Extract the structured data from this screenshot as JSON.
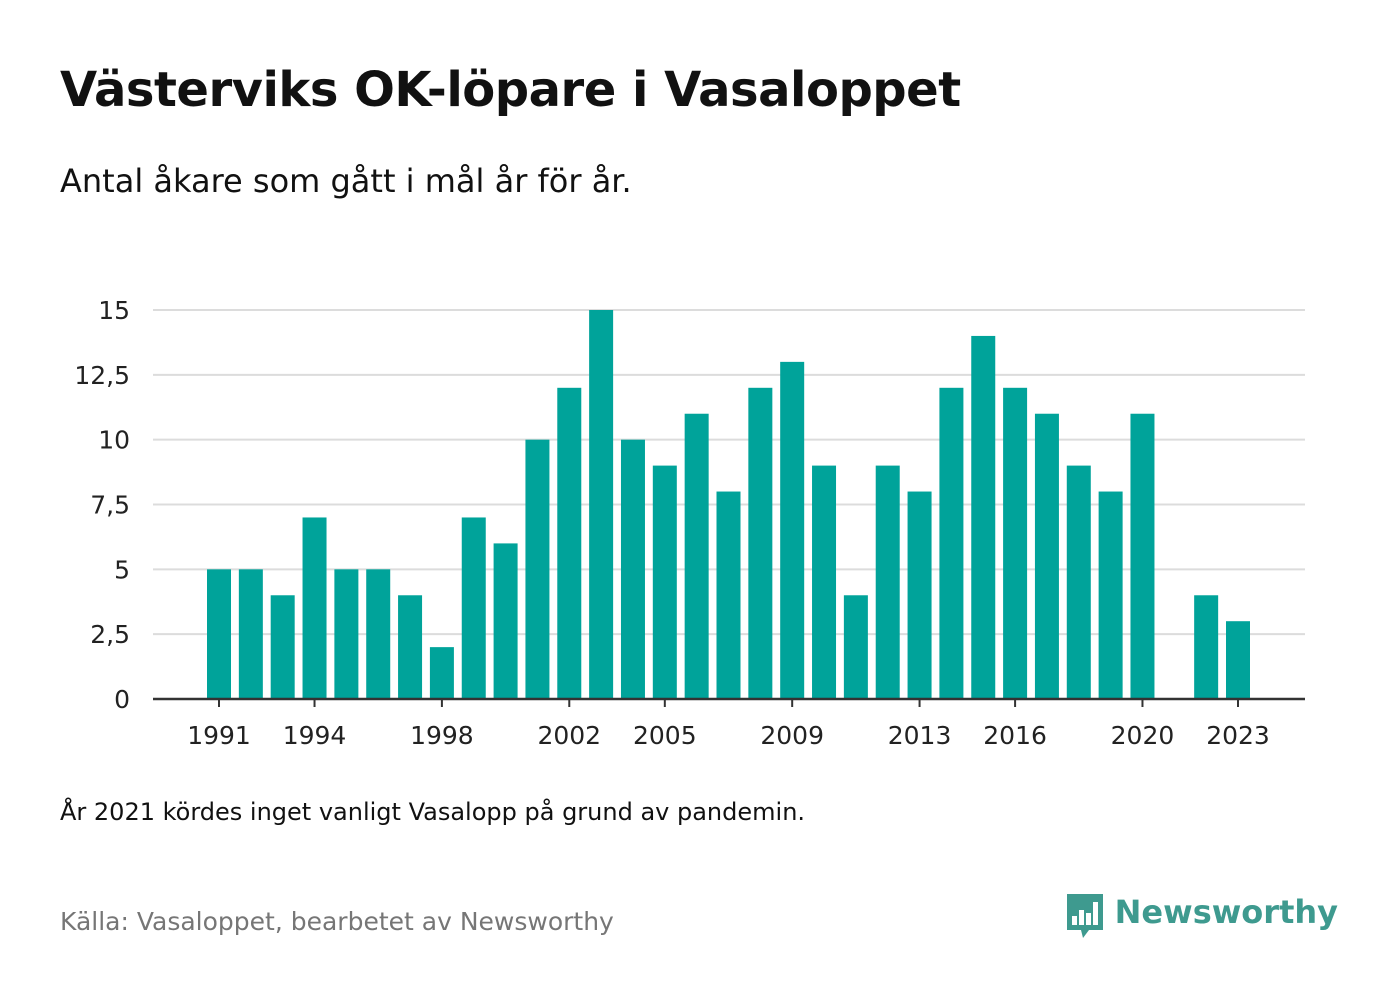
{
  "title": "Västerviks OK-löpare i Vasaloppet",
  "subtitle": "Antal åkare som gått i mål år för år.",
  "note": "År 2021 kördes inget vanligt Vasalopp på grund av pandemin.",
  "source": "Källa: Vasaloppet, bearbetet av Newsworthy",
  "logo": {
    "text": "Newsworthy",
    "icon": "bar-chart-speech-bubble-icon",
    "color": "#3e9a8f"
  },
  "chart_data": {
    "type": "bar",
    "bar_color": "#00a39a",
    "grid": true,
    "ylim": [
      0,
      15
    ],
    "yticks": [
      0,
      2.5,
      5,
      7.5,
      10,
      12.5,
      15
    ],
    "ytick_labels": [
      "0",
      "2,5",
      "5",
      "7,5",
      "10",
      "12,5",
      "15"
    ],
    "xtick_labels": [
      "1991",
      "1994",
      "1998",
      "2002",
      "2005",
      "2009",
      "2013",
      "2016",
      "2020",
      "2023"
    ],
    "x": [
      1991,
      1992,
      1993,
      1994,
      1995,
      1996,
      1997,
      1998,
      1999,
      2000,
      2001,
      2002,
      2003,
      2004,
      2005,
      2006,
      2007,
      2008,
      2009,
      2010,
      2011,
      2012,
      2013,
      2014,
      2015,
      2016,
      2017,
      2018,
      2019,
      2020,
      2021,
      2022,
      2023
    ],
    "values": [
      5,
      5,
      4,
      7,
      5,
      5,
      4,
      2,
      7,
      6,
      10,
      12,
      15,
      10,
      9,
      11,
      8,
      12,
      13,
      9,
      4,
      9,
      8,
      12,
      14,
      12,
      11,
      9,
      8,
      11,
      null,
      4,
      3
    ],
    "xlabel": "",
    "ylabel": ""
  }
}
